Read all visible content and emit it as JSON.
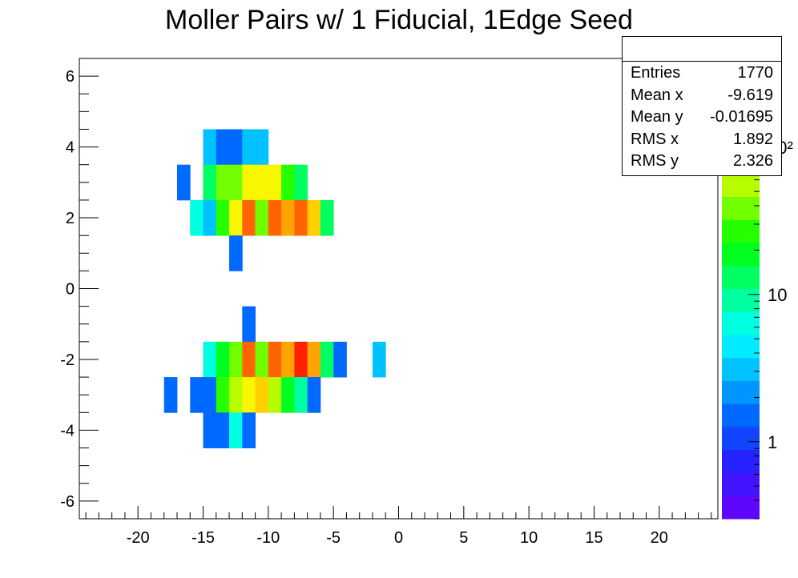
{
  "chart_data": {
    "type": "heatmap",
    "title": "Moller Pairs w/ 1 Fiducial, 1Edge Seed",
    "xlim": [
      -24.5,
      24.5
    ],
    "ylim": [
      -6.5,
      6.5
    ],
    "x_ticks": [
      "-20",
      "-15",
      "-10",
      "-5",
      "0",
      "5",
      "10",
      "15",
      "20"
    ],
    "x_tick_values": [
      -20,
      -15,
      -10,
      -5,
      0,
      5,
      10,
      15,
      20
    ],
    "y_ticks": [
      "-6",
      "-4",
      "-2",
      "0",
      "2",
      "4",
      "6"
    ],
    "y_tick_values": [
      -6,
      -4,
      -2,
      0,
      2,
      4,
      6
    ],
    "bin_width_x": 1,
    "bin_height_y": 1,
    "z_scale": "log",
    "z_range": [
      0.3,
      400
    ],
    "colorbar_labels": [
      "1",
      "10",
      "10²"
    ],
    "colorbar_values": [
      1,
      10,
      100
    ],
    "bins": [
      {
        "x": -14.5,
        "y": 4,
        "v": 2.7
      },
      {
        "x": -13.5,
        "y": 4,
        "v": 1.3
      },
      {
        "x": -12.5,
        "y": 4,
        "v": 1.3
      },
      {
        "x": -11.5,
        "y": 4,
        "v": 3.0
      },
      {
        "x": -10.5,
        "y": 4,
        "v": 3.5
      },
      {
        "x": -16.5,
        "y": 3,
        "v": 1.3
      },
      {
        "x": -14.5,
        "y": 3,
        "v": 12
      },
      {
        "x": -13.5,
        "y": 3,
        "v": 35
      },
      {
        "x": -12.5,
        "y": 3,
        "v": 35
      },
      {
        "x": -11.5,
        "y": 3,
        "v": 80
      },
      {
        "x": -10.5,
        "y": 3,
        "v": 80
      },
      {
        "x": -9.5,
        "y": 3,
        "v": 80
      },
      {
        "x": -8.5,
        "y": 3,
        "v": 30
      },
      {
        "x": -7.5,
        "y": 3,
        "v": 12
      },
      {
        "x": -15.5,
        "y": 2,
        "v": 6
      },
      {
        "x": -14.5,
        "y": 2,
        "v": 3.5
      },
      {
        "x": -13.5,
        "y": 2,
        "v": 25
      },
      {
        "x": -12.5,
        "y": 2,
        "v": 80
      },
      {
        "x": -11.5,
        "y": 2,
        "v": 250
      },
      {
        "x": -10.5,
        "y": 2,
        "v": 40
      },
      {
        "x": -9.5,
        "y": 2,
        "v": 250
      },
      {
        "x": -8.5,
        "y": 2,
        "v": 160
      },
      {
        "x": -7.5,
        "y": 2,
        "v": 250
      },
      {
        "x": -6.5,
        "y": 2,
        "v": 130
      },
      {
        "x": -5.5,
        "y": 2,
        "v": 12
      },
      {
        "x": -12.5,
        "y": 1,
        "v": 1.3
      },
      {
        "x": -11.5,
        "y": -1,
        "v": 1.3
      },
      {
        "x": -14.5,
        "y": -2,
        "v": 6
      },
      {
        "x": -13.5,
        "y": -2,
        "v": 20
      },
      {
        "x": -12.5,
        "y": -2,
        "v": 45
      },
      {
        "x": -11.5,
        "y": -2,
        "v": 250
      },
      {
        "x": -10.5,
        "y": -2,
        "v": 40
      },
      {
        "x": -9.5,
        "y": -2,
        "v": 250
      },
      {
        "x": -8.5,
        "y": -2,
        "v": 160
      },
      {
        "x": -7.5,
        "y": -2,
        "v": 300
      },
      {
        "x": -6.5,
        "y": -2,
        "v": 160
      },
      {
        "x": -5.5,
        "y": -2,
        "v": 15
      },
      {
        "x": -4.5,
        "y": -2,
        "v": 1.3
      },
      {
        "x": -1.5,
        "y": -2,
        "v": 3.0
      },
      {
        "x": -17.5,
        "y": -3,
        "v": 1.3
      },
      {
        "x": -15.5,
        "y": -3,
        "v": 1.3
      },
      {
        "x": -14.5,
        "y": -3,
        "v": 1.3
      },
      {
        "x": -13.5,
        "y": -3,
        "v": 30
      },
      {
        "x": -12.5,
        "y": -3,
        "v": 50
      },
      {
        "x": -11.5,
        "y": -3,
        "v": 80
      },
      {
        "x": -10.5,
        "y": -3,
        "v": 130
      },
      {
        "x": -9.5,
        "y": -3,
        "v": 50
      },
      {
        "x": -8.5,
        "y": -3,
        "v": 20
      },
      {
        "x": -7.5,
        "y": -3,
        "v": 10
      },
      {
        "x": -6.5,
        "y": -3,
        "v": 1.3
      },
      {
        "x": -14.5,
        "y": -4,
        "v": 1.3
      },
      {
        "x": -13.5,
        "y": -4,
        "v": 1.3
      },
      {
        "x": -12.5,
        "y": -4,
        "v": 6
      },
      {
        "x": -11.5,
        "y": -4,
        "v": 1.3
      }
    ]
  },
  "stats": {
    "rows": [
      {
        "label": "Entries",
        "value": "1770"
      },
      {
        "label": "Mean x",
        "value": "-9.619"
      },
      {
        "label": "Mean y",
        "value": "-0.01695"
      },
      {
        "label": "RMS x",
        "value": "1.892"
      },
      {
        "label": "RMS y",
        "value": "2.326"
      }
    ]
  }
}
